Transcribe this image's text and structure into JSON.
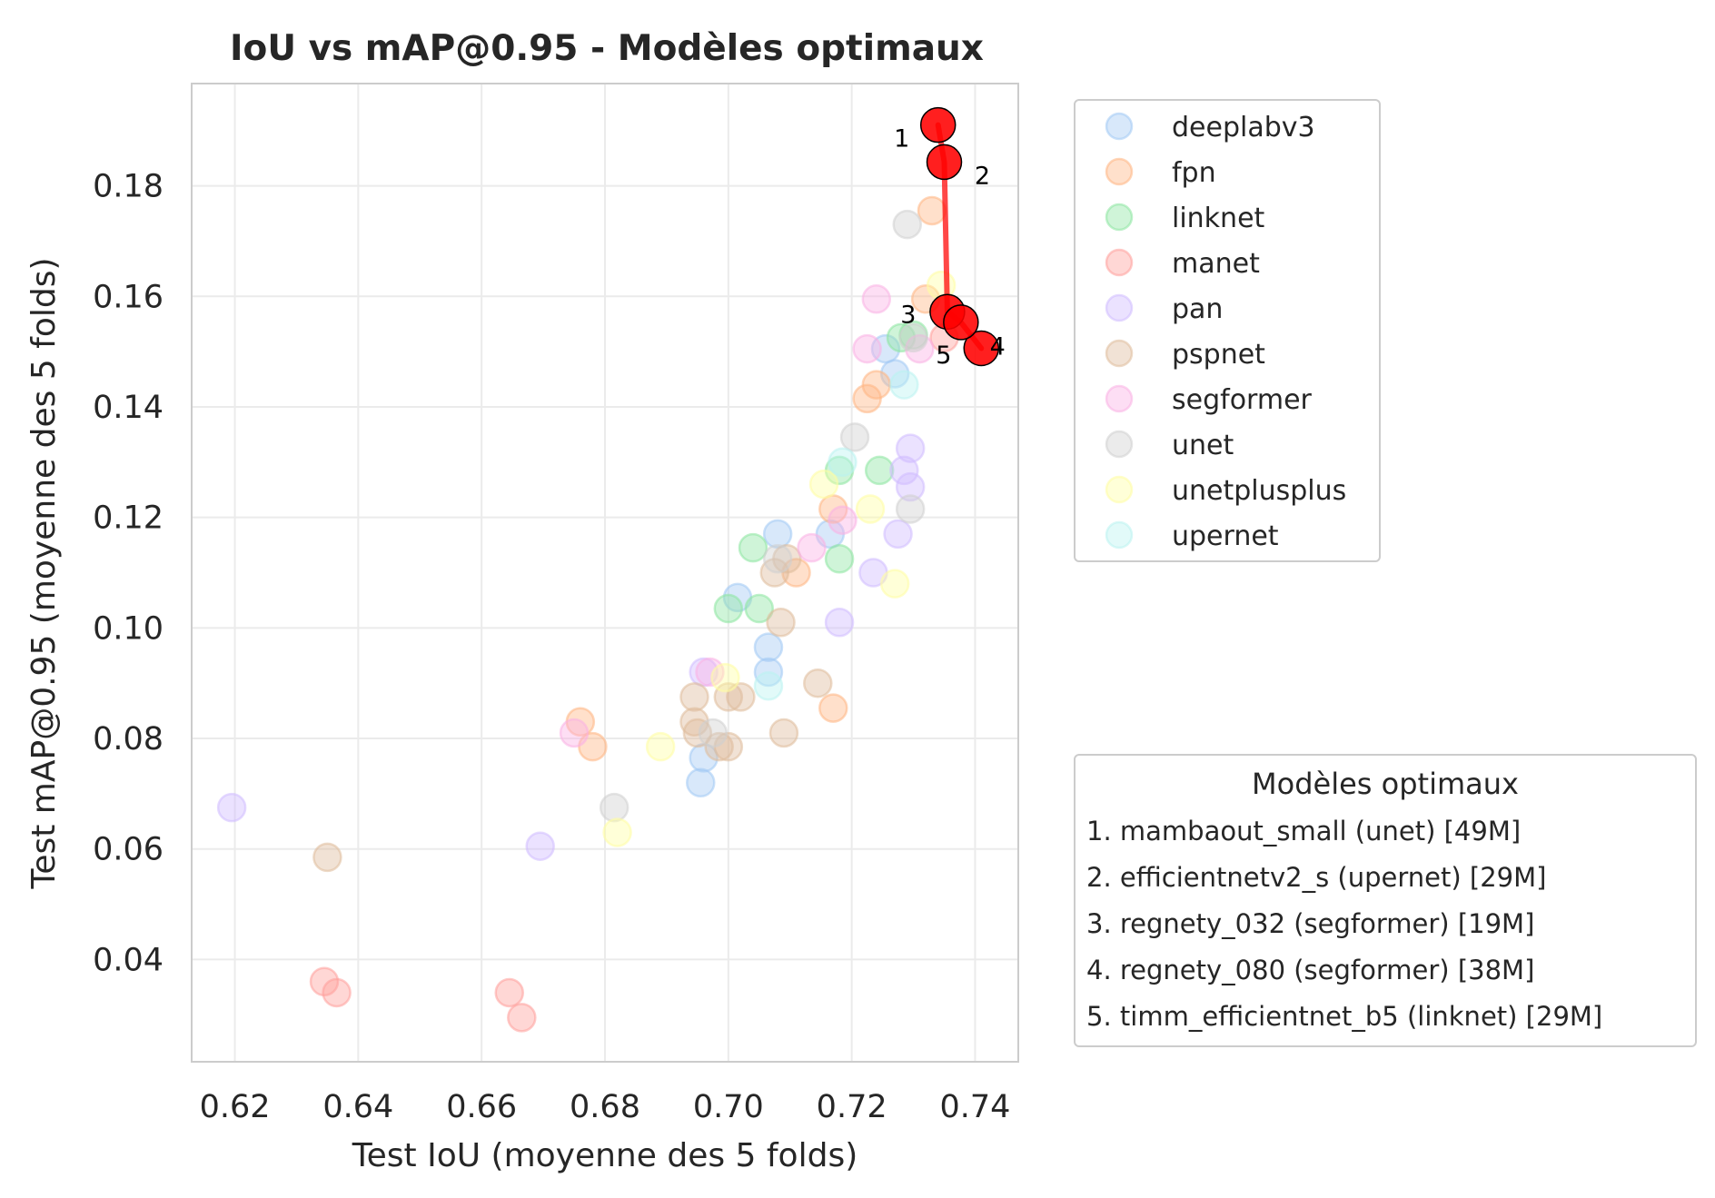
{
  "chart_data": {
    "type": "scatter",
    "title": "IoU vs mAP@0.95 - Modèles optimaux",
    "xlabel": "Test IoU (moyenne des 5 folds)",
    "ylabel": "Test mAP@0.95 (moyenne des 5 folds)",
    "xlim": [
      0.613,
      0.747
    ],
    "ylim": [
      0.0215,
      0.1985
    ],
    "xticks": [
      0.62,
      0.64,
      0.66,
      0.68,
      0.7,
      0.72,
      0.74
    ],
    "xtick_labels": [
      "0.62",
      "0.64",
      "0.66",
      "0.68",
      "0.70",
      "0.72",
      "0.74"
    ],
    "yticks": [
      0.04,
      0.06,
      0.08,
      0.1,
      0.12,
      0.14,
      0.16,
      0.18
    ],
    "ytick_labels": [
      "0.04",
      "0.06",
      "0.08",
      "0.10",
      "0.12",
      "0.14",
      "0.16",
      "0.18"
    ],
    "grid": true,
    "legend_position": "outside-right-top",
    "series": [
      {
        "name": "deeplabv3",
        "color": "#a1c9f4",
        "points": [
          [
            0.6955,
            0.072
          ],
          [
            0.696,
            0.0765
          ],
          [
            0.7015,
            0.1055
          ],
          [
            0.7065,
            0.0965
          ],
          [
            0.7065,
            0.092
          ],
          [
            0.708,
            0.117
          ],
          [
            0.7165,
            0.117
          ],
          [
            0.727,
            0.146
          ],
          [
            0.7255,
            0.1505
          ]
        ]
      },
      {
        "name": "fpn",
        "color": "#ffb482",
        "points": [
          [
            0.676,
            0.083
          ],
          [
            0.678,
            0.0785
          ],
          [
            0.711,
            0.11
          ],
          [
            0.717,
            0.0855
          ],
          [
            0.717,
            0.1215
          ],
          [
            0.7225,
            0.1415
          ],
          [
            0.724,
            0.144
          ],
          [
            0.732,
            0.1595
          ],
          [
            0.733,
            0.1755
          ]
        ]
      },
      {
        "name": "linknet",
        "color": "#8de5a1",
        "points": [
          [
            0.7,
            0.1035
          ],
          [
            0.704,
            0.1145
          ],
          [
            0.705,
            0.1035
          ],
          [
            0.718,
            0.1125
          ],
          [
            0.718,
            0.1285
          ],
          [
            0.7245,
            0.1285
          ],
          [
            0.728,
            0.1525
          ],
          [
            0.73,
            0.153
          ]
        ]
      },
      {
        "name": "manet",
        "color": "#ff9f9b",
        "points": [
          [
            0.6345,
            0.036
          ],
          [
            0.6365,
            0.034
          ],
          [
            0.6645,
            0.034
          ],
          [
            0.6665,
            0.0295
          ],
          [
            0.735,
            0.1525
          ]
        ]
      },
      {
        "name": "pan",
        "color": "#d0bbff",
        "points": [
          [
            0.6195,
            0.0675
          ],
          [
            0.6695,
            0.0605
          ],
          [
            0.696,
            0.092
          ],
          [
            0.718,
            0.101
          ],
          [
            0.7235,
            0.11
          ],
          [
            0.7275,
            0.117
          ],
          [
            0.7285,
            0.1285
          ],
          [
            0.7295,
            0.1325
          ],
          [
            0.7295,
            0.1255
          ]
        ]
      },
      {
        "name": "pspnet",
        "color": "#debb9b",
        "points": [
          [
            0.635,
            0.0585
          ],
          [
            0.6945,
            0.0875
          ],
          [
            0.6945,
            0.083
          ],
          [
            0.695,
            0.081
          ],
          [
            0.6985,
            0.0785
          ],
          [
            0.7,
            0.0785
          ],
          [
            0.7,
            0.0875
          ],
          [
            0.702,
            0.0875
          ],
          [
            0.7075,
            0.11
          ],
          [
            0.7085,
            0.101
          ],
          [
            0.709,
            0.081
          ],
          [
            0.7145,
            0.09
          ],
          [
            0.7095,
            0.1125
          ]
        ]
      },
      {
        "name": "segformer",
        "color": "#fab0e4",
        "points": [
          [
            0.675,
            0.081
          ],
          [
            0.697,
            0.092
          ],
          [
            0.7135,
            0.1145
          ],
          [
            0.7185,
            0.1195
          ],
          [
            0.7225,
            0.1505
          ],
          [
            0.724,
            0.1595
          ],
          [
            0.731,
            0.1505
          ]
        ]
      },
      {
        "name": "unet",
        "color": "#cfcfcf",
        "points": [
          [
            0.6815,
            0.0675
          ],
          [
            0.6975,
            0.081
          ],
          [
            0.708,
            0.1125
          ],
          [
            0.7205,
            0.1345
          ],
          [
            0.729,
            0.173
          ],
          [
            0.7295,
            0.1215
          ],
          [
            0.73,
            0.1525
          ]
        ]
      },
      {
        "name": "unetplusplus",
        "color": "#fffea3",
        "points": [
          [
            0.682,
            0.063
          ],
          [
            0.689,
            0.0785
          ],
          [
            0.6995,
            0.091
          ],
          [
            0.7155,
            0.126
          ],
          [
            0.723,
            0.1215
          ],
          [
            0.727,
            0.108
          ],
          [
            0.7345,
            0.162
          ]
        ]
      },
      {
        "name": "upernet",
        "color": "#b9f2f0",
        "points": [
          [
            0.7065,
            0.0895
          ],
          [
            0.7185,
            0.13
          ],
          [
            0.7285,
            0.144
          ]
        ]
      }
    ],
    "optimal": {
      "legend_title": "Modèles optimaux",
      "color": "#ff0000",
      "points": [
        {
          "rank": "1",
          "x": 0.734,
          "y": 0.191,
          "label": "1. mambaout_small (unet) [49M]"
        },
        {
          "rank": "2",
          "x": 0.735,
          "y": 0.1843,
          "label": "2. efficientnetv2_s (upernet) [29M]"
        },
        {
          "rank": "3",
          "x": 0.7355,
          "y": 0.1572,
          "label": "3. regnety_032 (segformer) [19M]"
        },
        {
          "rank": "4",
          "x": 0.741,
          "y": 0.1506,
          "label": "4. regnety_080 (segformer) [38M]"
        },
        {
          "rank": "5",
          "x": 0.7377,
          "y": 0.1553,
          "label": "5. timm_efficientnet_b5 (linknet) [29M]"
        }
      ],
      "frontier_order": [
        "1",
        "2",
        "3",
        "5",
        "4"
      ]
    }
  }
}
